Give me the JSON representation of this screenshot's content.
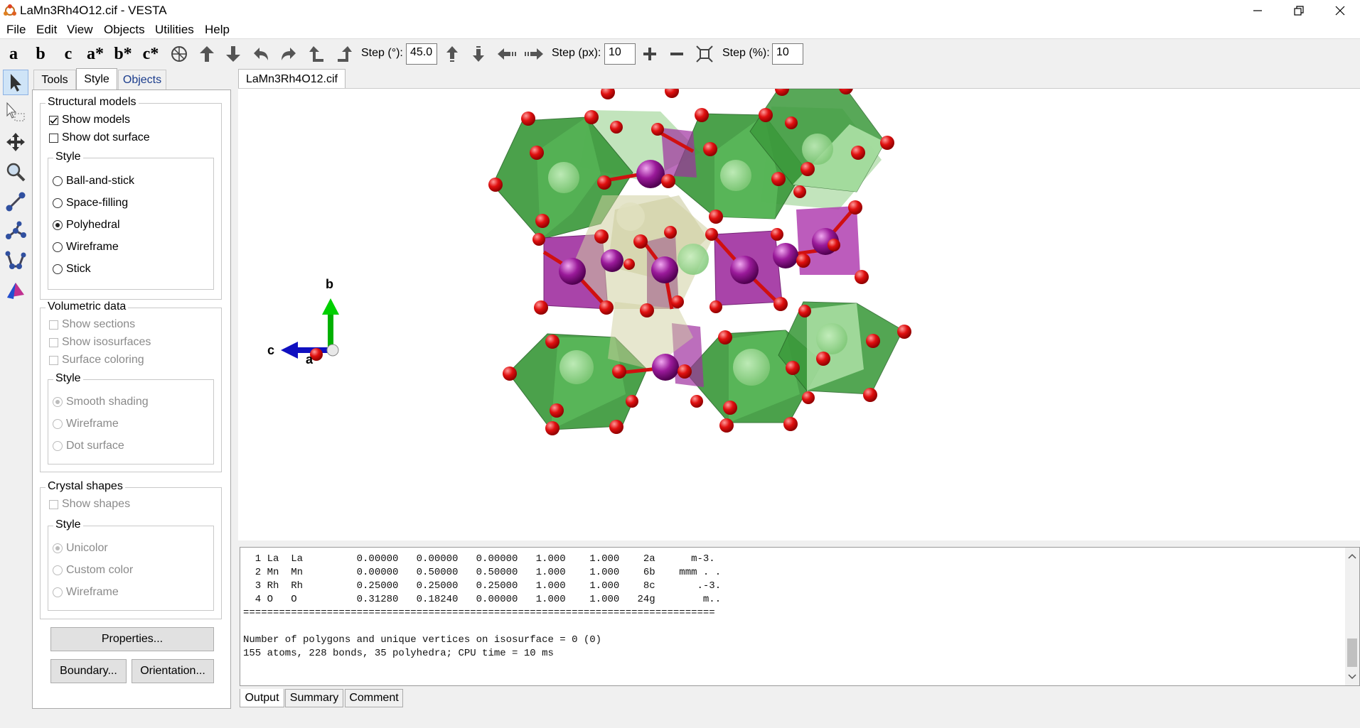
{
  "window": {
    "title": "LaMn3Rh4O12.cif - VESTA"
  },
  "menu": [
    "File",
    "Edit",
    "View",
    "Objects",
    "Utilities",
    "Help"
  ],
  "toolbar": {
    "axis_buttons": [
      "a",
      "b",
      "c",
      "a*",
      "b*",
      "c*"
    ],
    "step_deg_label": "Step (°):",
    "step_deg_value": "45.0",
    "step_px_label": "Step (px):",
    "step_px_value": "10",
    "step_pct_label": "Step (%):",
    "step_pct_value": "10"
  },
  "panel": {
    "tabs": [
      "Tools",
      "Style",
      "Objects"
    ],
    "active_tab": "Style",
    "structural_models": {
      "title": "Structural models",
      "show_models": "Show models",
      "show_dot_surface": "Show dot surface",
      "style_title": "Style",
      "styles": [
        "Ball-and-stick",
        "Space-filling",
        "Polyhedral",
        "Wireframe",
        "Stick"
      ],
      "selected_style": "Polyhedral"
    },
    "volumetric": {
      "title": "Volumetric data",
      "show_sections": "Show sections",
      "show_isosurfaces": "Show isosurfaces",
      "surface_coloring": "Surface coloring",
      "style_title": "Style",
      "styles": [
        "Smooth shading",
        "Wireframe",
        "Dot surface"
      ]
    },
    "crystal": {
      "title": "Crystal shapes",
      "show_shapes": "Show shapes",
      "style_title": "Style",
      "styles": [
        "Unicolor",
        "Custom color",
        "Wireframe"
      ]
    },
    "buttons": {
      "properties": "Properties...",
      "boundary": "Boundary...",
      "orientation": "Orientation..."
    }
  },
  "document": {
    "tab": "LaMn3Rh4O12.cif"
  },
  "viewer": {
    "axis_b": "b",
    "axis_c": "c",
    "axis_a": "a"
  },
  "output": {
    "lines": [
      "  1 La  La         0.00000   0.00000   0.00000   1.000    1.000    2a      m-3.",
      "  2 Mn  Mn         0.00000   0.50000   0.50000   1.000    1.000    6b    mmm . .",
      "  3 Rh  Rh         0.25000   0.25000   0.25000   1.000    1.000    8c       .-3.",
      "  4 O   O          0.31280   0.18240   0.00000   1.000    1.000   24g        m..",
      "===============================================================================",
      "",
      "Number of polygons and unique vertices on isosurface = 0 (0)",
      "155 atoms, 228 bonds, 35 polyhedra; CPU time = 10 ms"
    ],
    "tabs": [
      "Output",
      "Summary",
      "Comment"
    ]
  },
  "colors": {
    "oxygen": "#e00000",
    "rhodium_poly": "#3a9a3a",
    "manganese_poly": "#a030a0",
    "lanthanum": "#d8d8b0"
  }
}
